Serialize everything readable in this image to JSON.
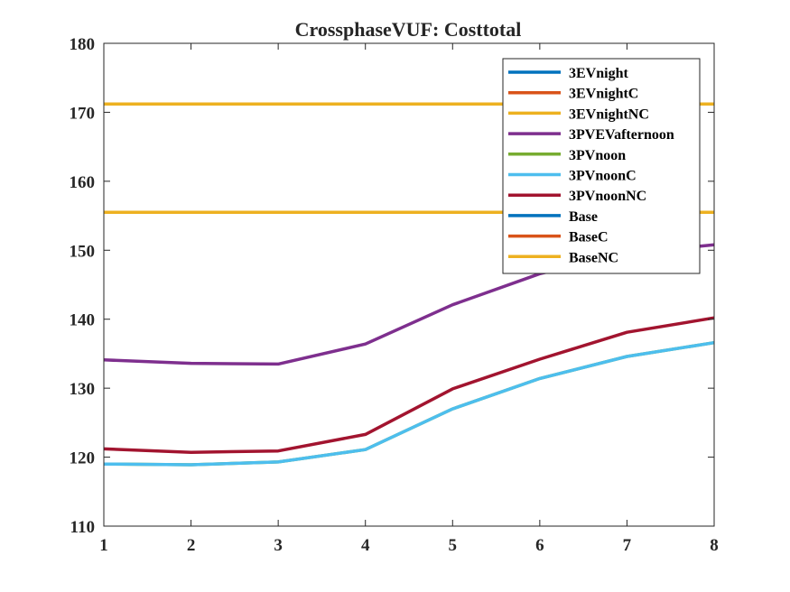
{
  "chart_data": {
    "type": "line",
    "title": "CrossphaseVUF: Costtotal",
    "xlabel": "",
    "ylabel": "",
    "x": [
      1,
      2,
      3,
      4,
      5,
      6,
      7,
      8
    ],
    "xlim": [
      1,
      8
    ],
    "ylim": [
      110,
      180
    ],
    "xticks": [
      1,
      2,
      3,
      4,
      5,
      6,
      7,
      8
    ],
    "yticks": [
      110,
      120,
      130,
      140,
      150,
      160,
      170,
      180
    ],
    "grid": false,
    "legend_position": "top-right",
    "series": [
      {
        "name": "3EVnight",
        "color": "#0072BD",
        "values": [
          155.5,
          155.5,
          155.5,
          155.5,
          155.5,
          155.5,
          155.5,
          155.5
        ]
      },
      {
        "name": "3EVnightC",
        "color": "#D95319",
        "values": [
          155.5,
          155.5,
          155.5,
          155.5,
          155.5,
          155.5,
          155.5,
          155.5
        ]
      },
      {
        "name": "3EVnightNC",
        "color": "#EDB120",
        "values": [
          171.2,
          171.2,
          171.2,
          171.2,
          171.2,
          171.2,
          171.2,
          171.2
        ]
      },
      {
        "name": "3PVEVafternoon",
        "color": "#7E2F8E",
        "values": [
          134.1,
          133.6,
          133.5,
          136.4,
          142.1,
          146.6,
          149.5,
          150.8
        ]
      },
      {
        "name": "3PVnoon",
        "color": "#77AC30",
        "values": [
          119.0,
          118.9,
          119.3,
          121.1,
          127.0,
          131.4,
          134.6,
          136.6
        ]
      },
      {
        "name": "3PVnoonC",
        "color": "#4DBEEE",
        "values": [
          119.0,
          118.9,
          119.3,
          121.1,
          127.0,
          131.4,
          134.6,
          136.6
        ]
      },
      {
        "name": "3PVnoonNC",
        "color": "#A2142F",
        "values": [
          121.2,
          120.7,
          120.9,
          123.3,
          129.9,
          134.2,
          138.1,
          140.2
        ]
      },
      {
        "name": "Base",
        "color": "#0072BD",
        "values": [
          155.5,
          155.5,
          155.5,
          155.5,
          155.5,
          155.5,
          155.5,
          155.5
        ]
      },
      {
        "name": "BaseC",
        "color": "#D95319",
        "values": [
          155.5,
          155.5,
          155.5,
          155.5,
          155.5,
          155.5,
          155.5,
          155.5
        ]
      },
      {
        "name": "BaseNC",
        "color": "#EDB120",
        "values": [
          155.5,
          155.5,
          155.5,
          155.5,
          155.5,
          155.5,
          155.5,
          155.5
        ]
      }
    ]
  }
}
